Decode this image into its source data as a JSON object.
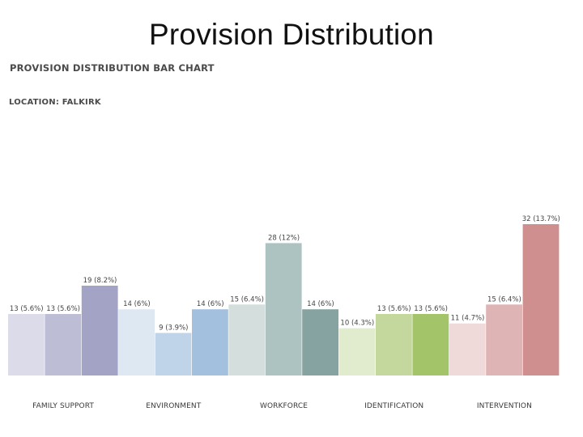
{
  "slide": {
    "title": "Provision Distribution"
  },
  "chart_data": {
    "type": "bar",
    "title": "PROVISION DISTRIBUTION BAR CHART",
    "subtitle": "LOCATION: FALKIRK",
    "xlabel": "",
    "ylabel": "",
    "grid": false,
    "legend": "none",
    "group_labels": [
      "FAMILY SUPPORT",
      "ENVIRONMENT",
      "WORKFORCE",
      "IDENTIFICATION",
      "INTERVENTION"
    ],
    "bars": [
      {
        "group": 0,
        "value": 13,
        "label": "13 (5.6%)",
        "color": "#dcdbe9"
      },
      {
        "group": 0,
        "value": 13,
        "label": "13 (5.6%)",
        "color": "#bdbdd6"
      },
      {
        "group": 0,
        "value": 19,
        "label": "19 (8.2%)",
        "color": "#a3a3c5"
      },
      {
        "group": 1,
        "value": 14,
        "label": "14 (6%)",
        "color": "#dde8f3"
      },
      {
        "group": 1,
        "value": 9,
        "label": "9 (3.9%)",
        "color": "#c0d4e9"
      },
      {
        "group": 1,
        "value": 14,
        "label": "14 (6%)",
        "color": "#a3c0df"
      },
      {
        "group": 2,
        "value": 15,
        "label": "15 (6.4%)",
        "color": "#d3dedd"
      },
      {
        "group": 2,
        "value": 28,
        "label": "28 (12%)",
        "color": "#adc3c2"
      },
      {
        "group": 2,
        "value": 14,
        "label": "14 (6%)",
        "color": "#86a3a2"
      },
      {
        "group": 3,
        "value": 10,
        "label": "10 (4.3%)",
        "color": "#e1ebcd"
      },
      {
        "group": 3,
        "value": 13,
        "label": "13 (5.6%)",
        "color": "#c4d79d"
      },
      {
        "group": 3,
        "value": 13,
        "label": "13 (5.6%)",
        "color": "#a4c46a"
      },
      {
        "group": 4,
        "value": 11,
        "label": "11 (4.7%)",
        "color": "#efd9d9"
      },
      {
        "group": 4,
        "value": 15,
        "label": "15 (6.4%)",
        "color": "#dfb4b4"
      },
      {
        "group": 4,
        "value": 32,
        "label": "32 (13.7%)",
        "color": "#cf8f8f"
      }
    ],
    "ylim": [
      0,
      32
    ]
  }
}
